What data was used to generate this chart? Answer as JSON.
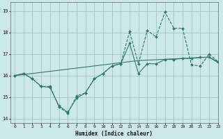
{
  "xlabel": "Humidex (Indice chaleur)",
  "bg_color": "#cce8e8",
  "grid_color": "#9bbfbf",
  "line_color": "#2d7a6e",
  "xmin": -0.5,
  "xmax": 23,
  "ymin": 13.8,
  "ymax": 19.4,
  "yticks": [
    14,
    15,
    16,
    17,
    18,
    19
  ],
  "xticks": [
    0,
    1,
    2,
    3,
    4,
    5,
    6,
    7,
    8,
    9,
    10,
    11,
    12,
    13,
    14,
    15,
    16,
    17,
    18,
    19,
    20,
    21,
    22,
    23
  ],
  "line_wiggly_x": [
    0,
    1,
    2,
    3,
    4,
    5,
    6,
    7,
    8,
    9,
    10,
    11,
    12,
    13,
    14,
    15,
    16,
    17,
    18,
    19,
    20,
    21,
    22,
    23
  ],
  "line_wiggly_y": [
    16.0,
    16.1,
    15.85,
    15.5,
    15.5,
    14.55,
    14.25,
    15.05,
    15.2,
    15.85,
    16.1,
    16.45,
    16.55,
    18.05,
    16.55,
    18.1,
    17.8,
    18.95,
    18.2,
    18.2,
    16.5,
    16.45,
    17.0,
    16.65
  ],
  "line_smooth_x": [
    0,
    1,
    2,
    3,
    4,
    5,
    6,
    7,
    8,
    9,
    10,
    11,
    12,
    13,
    14,
    15,
    16,
    17,
    18,
    19,
    20,
    21,
    22,
    23
  ],
  "line_smooth_y": [
    16.0,
    16.05,
    16.1,
    16.15,
    16.2,
    16.25,
    16.3,
    16.35,
    16.4,
    16.45,
    16.5,
    16.55,
    16.6,
    16.65,
    16.7,
    16.72,
    16.74,
    16.76,
    16.78,
    16.8,
    16.82,
    16.84,
    16.86,
    16.6
  ],
  "line_mid_x": [
    0,
    1,
    2,
    3,
    4,
    5,
    6,
    7,
    8,
    9,
    10,
    11,
    12,
    13,
    14,
    15,
    16,
    17,
    18,
    19,
    20,
    21,
    22,
    23
  ],
  "line_mid_y": [
    16.0,
    16.1,
    15.85,
    15.5,
    15.45,
    14.6,
    14.3,
    14.95,
    15.2,
    15.85,
    16.1,
    16.45,
    16.55,
    17.5,
    16.1,
    16.55,
    16.55,
    16.75,
    16.75,
    16.8,
    16.8,
    16.85,
    16.85,
    16.65
  ]
}
